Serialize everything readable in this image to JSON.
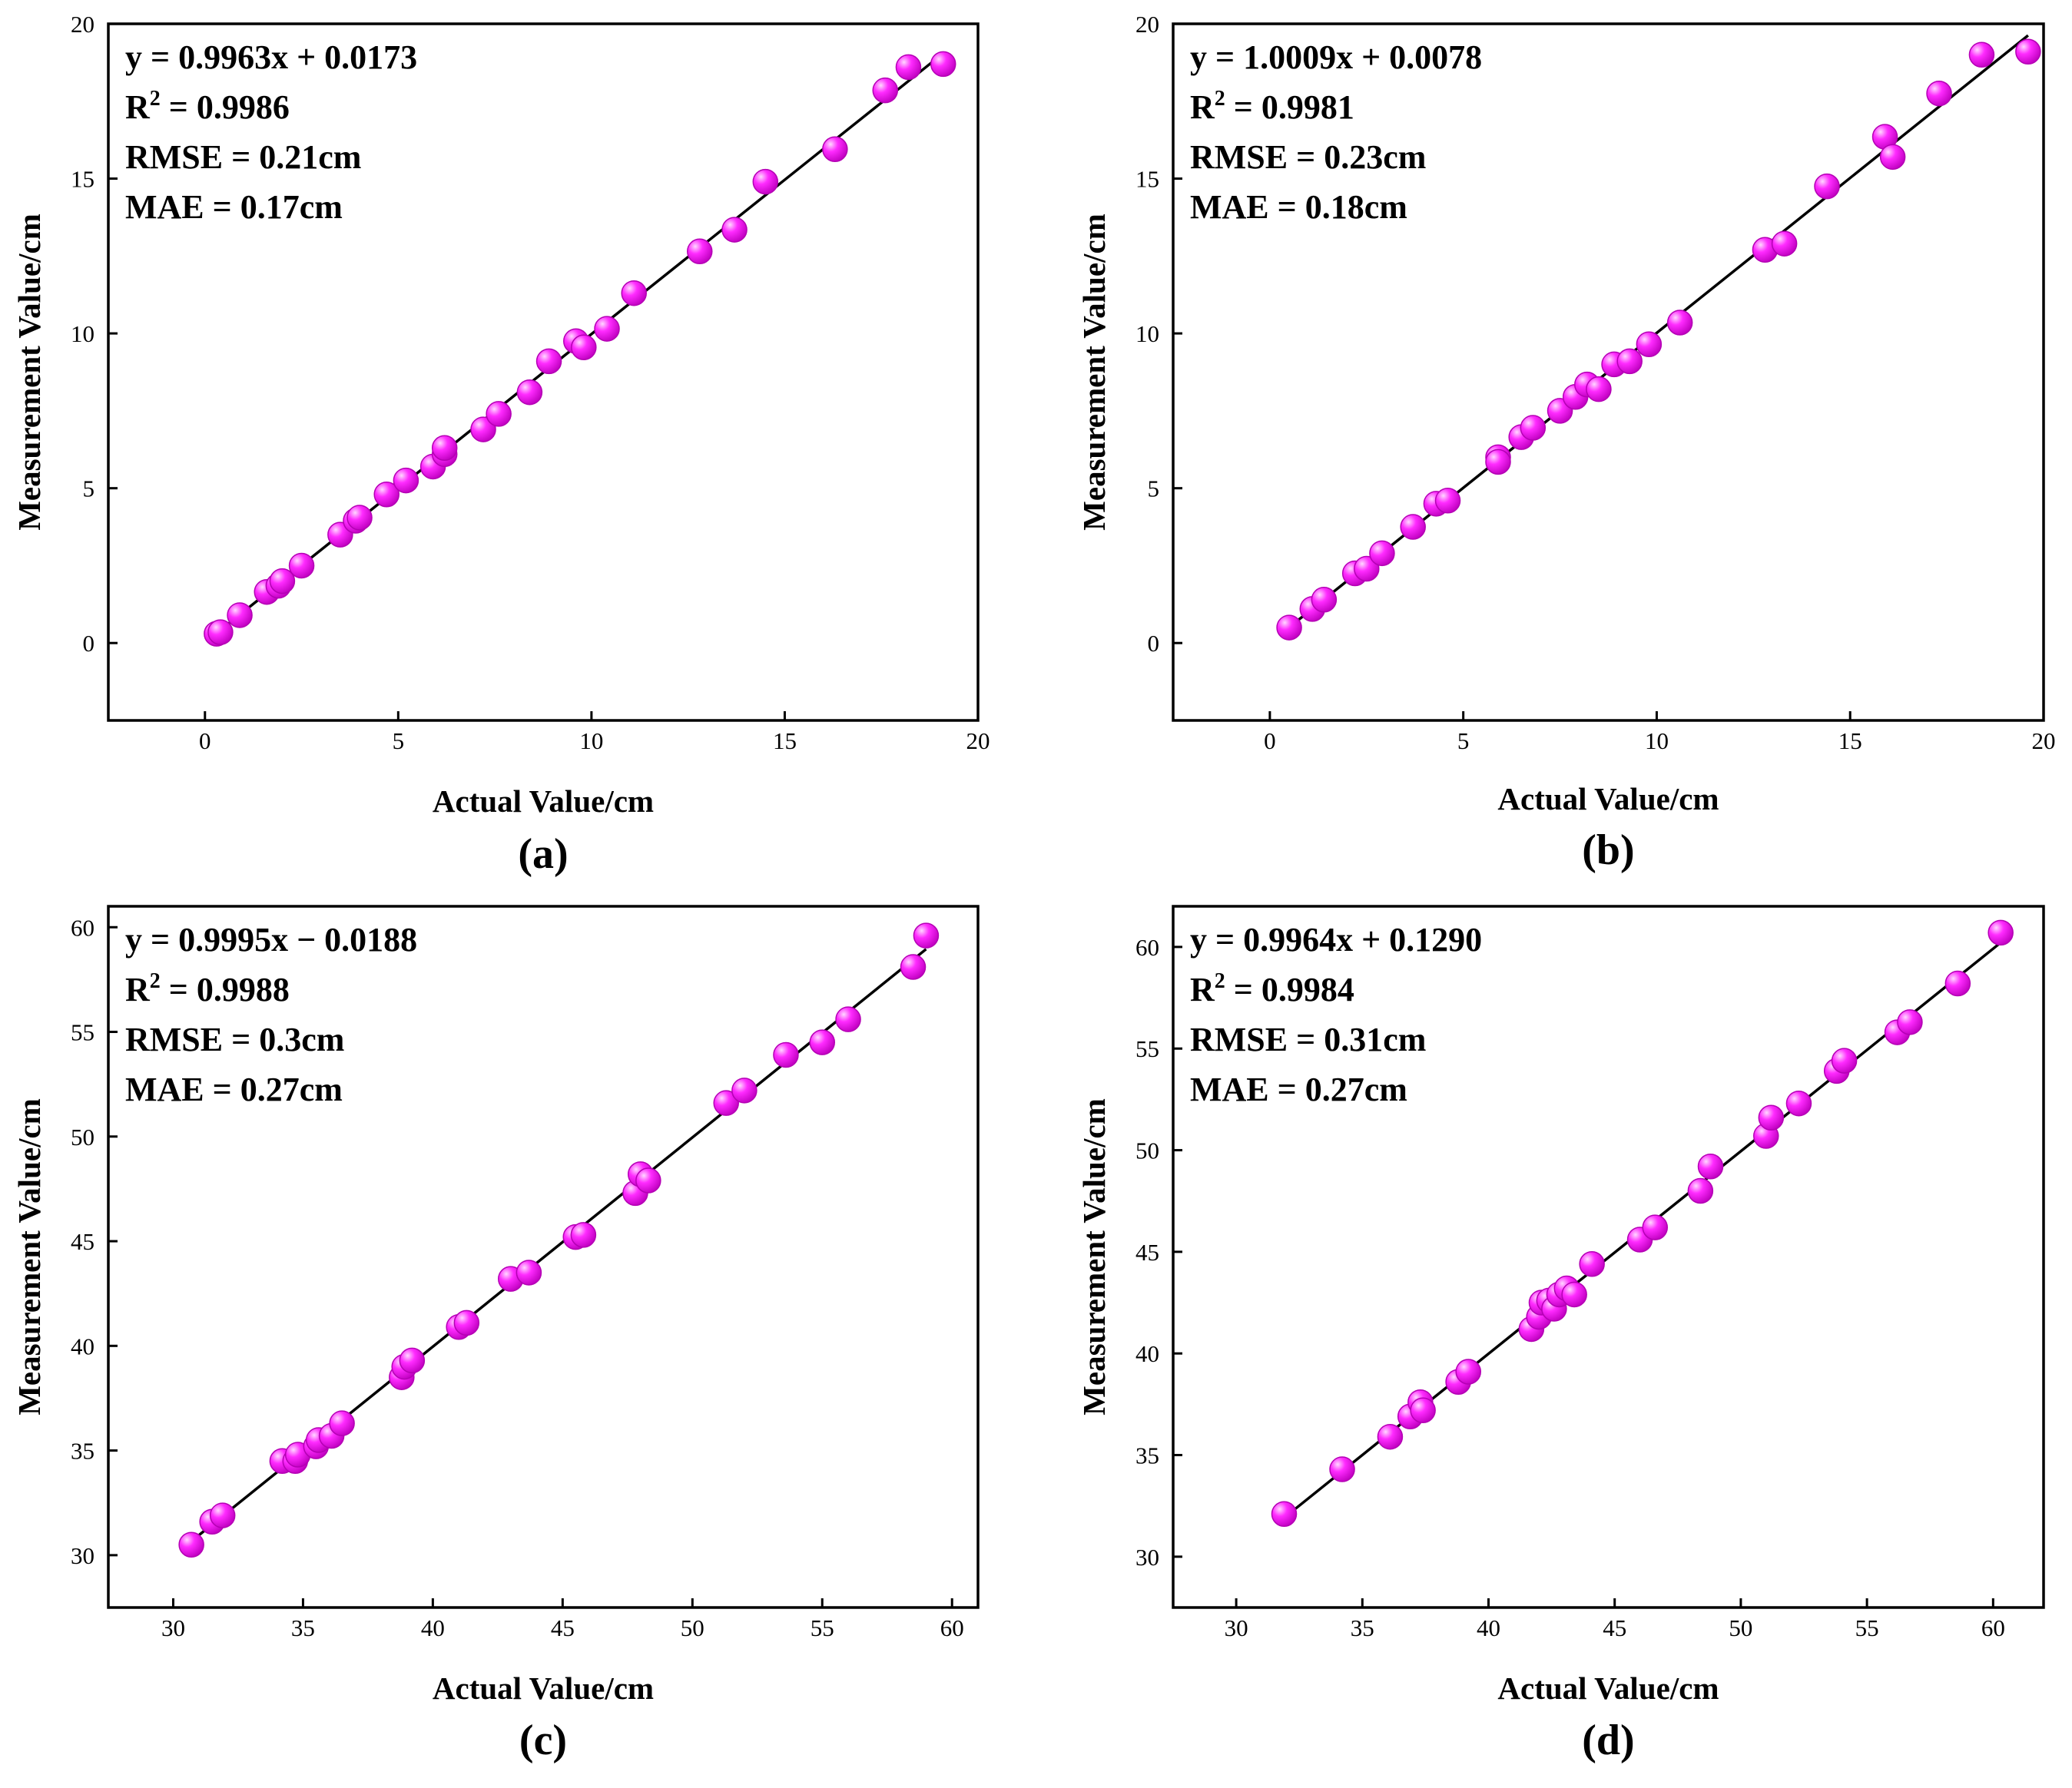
{
  "style": {
    "marker_color": "#ff2bff",
    "marker_dark": "#b400b4",
    "marker_light": "#ffd8ff",
    "line_color": "#000000"
  },
  "chart_data": [
    {
      "type": "scatter",
      "label": "(a)",
      "xlabel": "Actual Value/cm",
      "ylabel": "Measurement Value/cm",
      "xlim": [
        -2.5,
        20
      ],
      "ylim": [
        -2.5,
        20
      ],
      "xticks": [
        0,
        5,
        10,
        15,
        20
      ],
      "yticks": [
        0,
        5,
        10,
        15,
        20
      ],
      "fit": {
        "slope": 0.9963,
        "intercept": 0.0173,
        "x_range": [
          0.3,
          19.1
        ]
      },
      "stats": {
        "equation": "y = 0.9963x + 0.0173",
        "r2_prefix": "R",
        "r2_sup": "2",
        "r2_value": " = 0.9986",
        "rmse": "RMSE = 0.21cm",
        "mae": "MAE = 0.17cm"
      },
      "points": [
        [
          0.3,
          0.3
        ],
        [
          0.4,
          0.35
        ],
        [
          0.9,
          0.9
        ],
        [
          1.6,
          1.65
        ],
        [
          1.9,
          1.85
        ],
        [
          2.0,
          2.0
        ],
        [
          2.5,
          2.5
        ],
        [
          3.5,
          3.5
        ],
        [
          3.9,
          3.95
        ],
        [
          4.0,
          4.05
        ],
        [
          4.7,
          4.8
        ],
        [
          5.2,
          5.25
        ],
        [
          5.9,
          5.7
        ],
        [
          6.2,
          6.1
        ],
        [
          6.2,
          6.3
        ],
        [
          7.2,
          6.9
        ],
        [
          7.6,
          7.4
        ],
        [
          8.4,
          8.1
        ],
        [
          8.9,
          9.1
        ],
        [
          9.6,
          9.75
        ],
        [
          9.8,
          9.55
        ],
        [
          10.4,
          10.15
        ],
        [
          11.1,
          11.3
        ],
        [
          12.8,
          12.65
        ],
        [
          13.7,
          13.35
        ],
        [
          14.5,
          14.9
        ],
        [
          16.3,
          15.95
        ],
        [
          17.6,
          17.85
        ],
        [
          18.2,
          18.6
        ],
        [
          19.1,
          18.7
        ]
      ]
    },
    {
      "type": "scatter",
      "label": "(b)",
      "xlabel": "Actual Value/cm",
      "ylabel": "Measurement Value/cm",
      "xlim": [
        -2.5,
        20
      ],
      "ylim": [
        -2.5,
        20
      ],
      "xticks": [
        0,
        5,
        10,
        15,
        20
      ],
      "yticks": [
        0,
        5,
        10,
        15,
        20
      ],
      "fit": {
        "slope": 1.0009,
        "intercept": 0.0078,
        "x_range": [
          0.5,
          19.6
        ]
      },
      "stats": {
        "equation": "y = 1.0009x + 0.0078",
        "r2_prefix": "R",
        "r2_sup": "2",
        "r2_value": " = 0.9981",
        "rmse": "RMSE = 0.23cm",
        "mae": "MAE = 0.18cm"
      },
      "points": [
        [
          0.5,
          0.5
        ],
        [
          1.1,
          1.1
        ],
        [
          1.4,
          1.4
        ],
        [
          2.2,
          2.25
        ],
        [
          2.5,
          2.4
        ],
        [
          2.9,
          2.9
        ],
        [
          3.7,
          3.75
        ],
        [
          4.3,
          4.5
        ],
        [
          4.6,
          4.6
        ],
        [
          5.9,
          6.0
        ],
        [
          5.9,
          5.85
        ],
        [
          6.5,
          6.65
        ],
        [
          6.8,
          6.95
        ],
        [
          7.5,
          7.5
        ],
        [
          7.9,
          7.95
        ],
        [
          8.2,
          8.35
        ],
        [
          8.5,
          8.2
        ],
        [
          8.9,
          9.0
        ],
        [
          9.3,
          9.1
        ],
        [
          9.8,
          9.65
        ],
        [
          10.6,
          10.35
        ],
        [
          12.8,
          12.7
        ],
        [
          13.3,
          12.9
        ],
        [
          14.4,
          14.75
        ],
        [
          15.9,
          16.35
        ],
        [
          16.1,
          15.7
        ],
        [
          17.3,
          17.75
        ],
        [
          18.4,
          19.0
        ],
        [
          19.6,
          19.1
        ]
      ]
    },
    {
      "type": "scatter",
      "label": "(c)",
      "xlabel": "Actual Value/cm",
      "ylabel": "Measurement Value/cm",
      "xlim": [
        27.5,
        61
      ],
      "ylim": [
        27.5,
        61
      ],
      "xticks": [
        30,
        35,
        40,
        45,
        50,
        55,
        60
      ],
      "yticks": [
        30,
        35,
        40,
        45,
        50,
        55,
        60
      ],
      "fit": {
        "slope": 0.9995,
        "intercept": -0.0188,
        "x_range": [
          30.7,
          59.0
        ]
      },
      "stats": {
        "equation": "y = 0.9995x − 0.0188",
        "r2_prefix": "R",
        "r2_sup": "2",
        "r2_value": " = 0.9988",
        "rmse": "RMSE = 0.3cm",
        "mae": "MAE = 0.27cm"
      },
      "points": [
        [
          30.7,
          30.5
        ],
        [
          31.5,
          31.6
        ],
        [
          31.9,
          31.9
        ],
        [
          34.2,
          34.5
        ],
        [
          34.7,
          34.5
        ],
        [
          34.8,
          34.8
        ],
        [
          35.5,
          35.2
        ],
        [
          35.6,
          35.5
        ],
        [
          36.1,
          35.7
        ],
        [
          36.5,
          36.3
        ],
        [
          38.8,
          38.5
        ],
        [
          38.9,
          39.0
        ],
        [
          39.2,
          39.3
        ],
        [
          41.0,
          40.9
        ],
        [
          41.3,
          41.1
        ],
        [
          43.0,
          43.2
        ],
        [
          43.7,
          43.5
        ],
        [
          45.5,
          45.2
        ],
        [
          45.8,
          45.3
        ],
        [
          47.8,
          47.3
        ],
        [
          48.0,
          48.2
        ],
        [
          48.3,
          47.9
        ],
        [
          51.3,
          51.6
        ],
        [
          52.0,
          52.2
        ],
        [
          53.6,
          53.9
        ],
        [
          55.0,
          54.5
        ],
        [
          56.0,
          55.6
        ],
        [
          58.5,
          58.1
        ],
        [
          59.0,
          59.6
        ]
      ]
    },
    {
      "type": "scatter",
      "label": "(d)",
      "xlabel": "Actual Value/cm",
      "ylabel": "Measurement Value/cm",
      "xlim": [
        27.5,
        62
      ],
      "ylim": [
        27.5,
        62
      ],
      "xticks": [
        30,
        35,
        40,
        45,
        50,
        55,
        60
      ],
      "yticks": [
        30,
        35,
        40,
        45,
        50,
        55,
        60
      ],
      "fit": {
        "slope": 0.9964,
        "intercept": 0.129,
        "x_range": [
          31.9,
          60.3
        ]
      },
      "stats": {
        "equation": "y = 0.9964x + 0.1290",
        "r2_prefix": "R",
        "r2_sup": "2",
        "r2_value": " = 0.9984",
        "rmse": "RMSE = 0.31cm",
        "mae": "MAE = 0.27cm"
      },
      "points": [
        [
          31.9,
          32.1
        ],
        [
          34.2,
          34.3
        ],
        [
          36.1,
          35.9
        ],
        [
          36.9,
          36.9
        ],
        [
          37.3,
          37.6
        ],
        [
          37.4,
          37.2
        ],
        [
          38.8,
          38.6
        ],
        [
          39.2,
          39.1
        ],
        [
          41.7,
          41.2
        ],
        [
          42.0,
          41.8
        ],
        [
          42.1,
          42.5
        ],
        [
          42.4,
          42.6
        ],
        [
          42.6,
          42.2
        ],
        [
          42.8,
          42.9
        ],
        [
          43.1,
          43.2
        ],
        [
          43.4,
          42.9
        ],
        [
          44.1,
          44.4
        ],
        [
          46.0,
          45.6
        ],
        [
          46.6,
          46.2
        ],
        [
          48.4,
          48.0
        ],
        [
          48.8,
          49.2
        ],
        [
          51.0,
          50.7
        ],
        [
          51.2,
          51.6
        ],
        [
          52.3,
          52.3
        ],
        [
          53.8,
          53.9
        ],
        [
          54.1,
          54.4
        ],
        [
          56.2,
          55.8
        ],
        [
          56.7,
          56.3
        ],
        [
          58.6,
          58.2
        ],
        [
          60.3,
          60.7
        ]
      ]
    }
  ]
}
